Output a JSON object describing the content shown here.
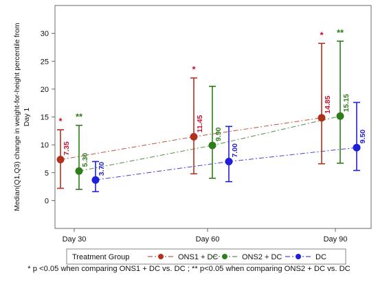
{
  "chart_data": {
    "type": "line",
    "ylabel_line1": "Median(Q1,Q3)  change in weight-for-height percentile from",
    "ylabel_line2": "Day 1",
    "categories": [
      "Day 30",
      "Day 60",
      "Day 90"
    ],
    "ylim": [
      -5,
      35
    ],
    "yticks": [
      0,
      5,
      10,
      15,
      20,
      25,
      30
    ],
    "grid": false,
    "legend_title": "Treatment Group",
    "legend_position": "bottom",
    "series": [
      {
        "name": "ONS1 + DC",
        "color": "#b0311d",
        "label_color": "#c8102e",
        "line_style": "dash-dot",
        "median": [
          7.35,
          11.45,
          14.85
        ],
        "q1": [
          2.2,
          4.8,
          6.6
        ],
        "q3": [
          12.7,
          22.0,
          28.2
        ],
        "labels": [
          "7.35",
          "11.45",
          "14.85"
        ],
        "significance": [
          "*",
          "*",
          "*"
        ]
      },
      {
        "name": "ONS2 + DC",
        "color": "#2e7d1a",
        "label_color": "#2e7d1a",
        "line_style": "dash-dot",
        "median": [
          5.3,
          9.9,
          15.15
        ],
        "q1": [
          2.0,
          4.0,
          6.7
        ],
        "q3": [
          13.5,
          20.5,
          28.6
        ],
        "labels": [
          "5.30",
          "9.90",
          "15.15"
        ],
        "significance": [
          "**",
          "",
          "**"
        ]
      },
      {
        "name": "DC",
        "color": "#1f1fd6",
        "label_color": "#1f1fd6",
        "line_style": "dash-dot",
        "median": [
          3.7,
          7.0,
          9.5
        ],
        "q1": [
          1.6,
          3.4,
          5.4
        ],
        "q3": [
          7.0,
          13.3,
          17.6
        ],
        "labels": [
          "3.70",
          "7.00",
          "9.50"
        ],
        "significance": [
          "",
          "",
          ""
        ]
      }
    ],
    "footnote": "* p <0.05 when comparing ONS1 + DC vs. DC ; ** p<0.05 when comparing ONS2 + DC vs. DC"
  }
}
